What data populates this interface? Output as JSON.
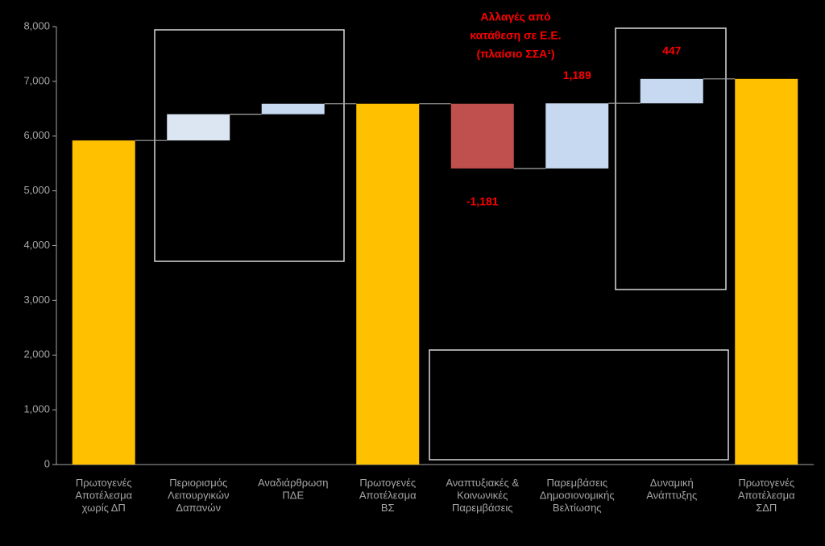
{
  "chart_data": {
    "type": "waterfall",
    "categories": [
      "Πρωτογενές\nΑποτέλεσμα\nχωρίς ΔΠ",
      "Περιορισμός\nΛειτουργικών\nΔαπανών",
      "Αναδιάρθρωση\nΠΔΕ",
      "Πρωτογενές\nΑποτέλεσμα\nΒΣ",
      "Αναπτυξιακές &\nΚοινωνικές\nΠαρεμβάσεις",
      "Παρεμβάσεις\nΔημοσιονομικής\nΒελτίωσης",
      "Δυναμική\nΑνάπτυξης",
      "Πρωτογενές\nΑποτέλεσμα\nΣΔΠ"
    ],
    "measure": [
      "total",
      "relative",
      "relative",
      "total",
      "relative",
      "relative",
      "relative",
      "total"
    ],
    "values": [
      5920,
      480,
      190,
      6590,
      -1181,
      1189,
      447,
      7045
    ],
    "value_labels": [
      null,
      null,
      null,
      null,
      "-1,181",
      "1,189",
      "447",
      null
    ],
    "colors": [
      "#ffc000",
      "#dce6f2",
      "#c6d9f1",
      "#ffc000",
      "#c0504d",
      "#c6d9f1",
      "#c6d9f1",
      "#ffc000"
    ],
    "annotation": [
      "Αλλαγές από",
      "κατάθεση σε Ε.Ε.",
      "(πλαίσιο ΣΣΑ¹)"
    ],
    "ylim": [
      0,
      8000
    ],
    "yticks": [
      0,
      {
        "value": 1000,
        "label": "1,000"
      },
      {
        "value": 2000,
        "label": "2,000"
      },
      {
        "value": 3000,
        "label": "3,000"
      },
      {
        "value": 4000,
        "label": "4,000"
      },
      {
        "value": 5000,
        "label": "5,000"
      },
      {
        "value": 6000,
        "label": "6,000"
      },
      {
        "value": 7000,
        "label": "7,000"
      },
      {
        "value": 8000,
        "label": "8,000"
      }
    ],
    "grid": false
  }
}
